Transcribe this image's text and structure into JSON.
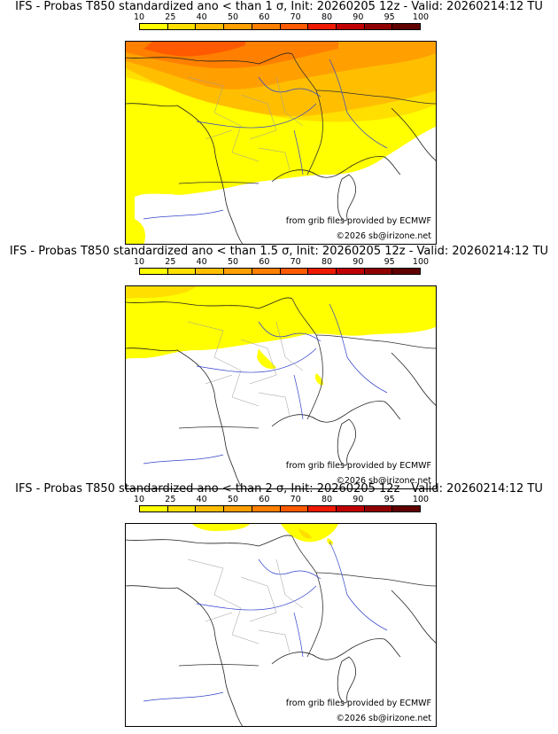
{
  "colorbar": {
    "labels": [
      "10",
      "25",
      "40",
      "50",
      "60",
      "70",
      "80",
      "90",
      "95",
      "100"
    ],
    "colors": [
      "#ffff00",
      "#ffdf00",
      "#ffbf00",
      "#ffa000",
      "#ff8000",
      "#ff5a00",
      "#ee1a00",
      "#c00000",
      "#900000",
      "#600000"
    ]
  },
  "credits": {
    "source": "from grib files provided by ECMWF",
    "copyright": "©2026 sb@irizone.net"
  },
  "panels": [
    {
      "title": "IFS - Probas T850  standardized ano < than 1 σ, Init: 20260205 12z - Valid: 20260214:12 TU",
      "threshold": "1 σ"
    },
    {
      "title": "IFS - Probas T850  standardized ano < than 1.5 σ, Init: 20260205 12z - Valid: 20260214:12 TU",
      "threshold": "1.5 σ"
    },
    {
      "title": "IFS - Probas T850  standardized ano < than 2 σ, Init: 20260205 12z - Valid: 20260214:12 TU",
      "threshold": "2 σ"
    }
  ]
}
